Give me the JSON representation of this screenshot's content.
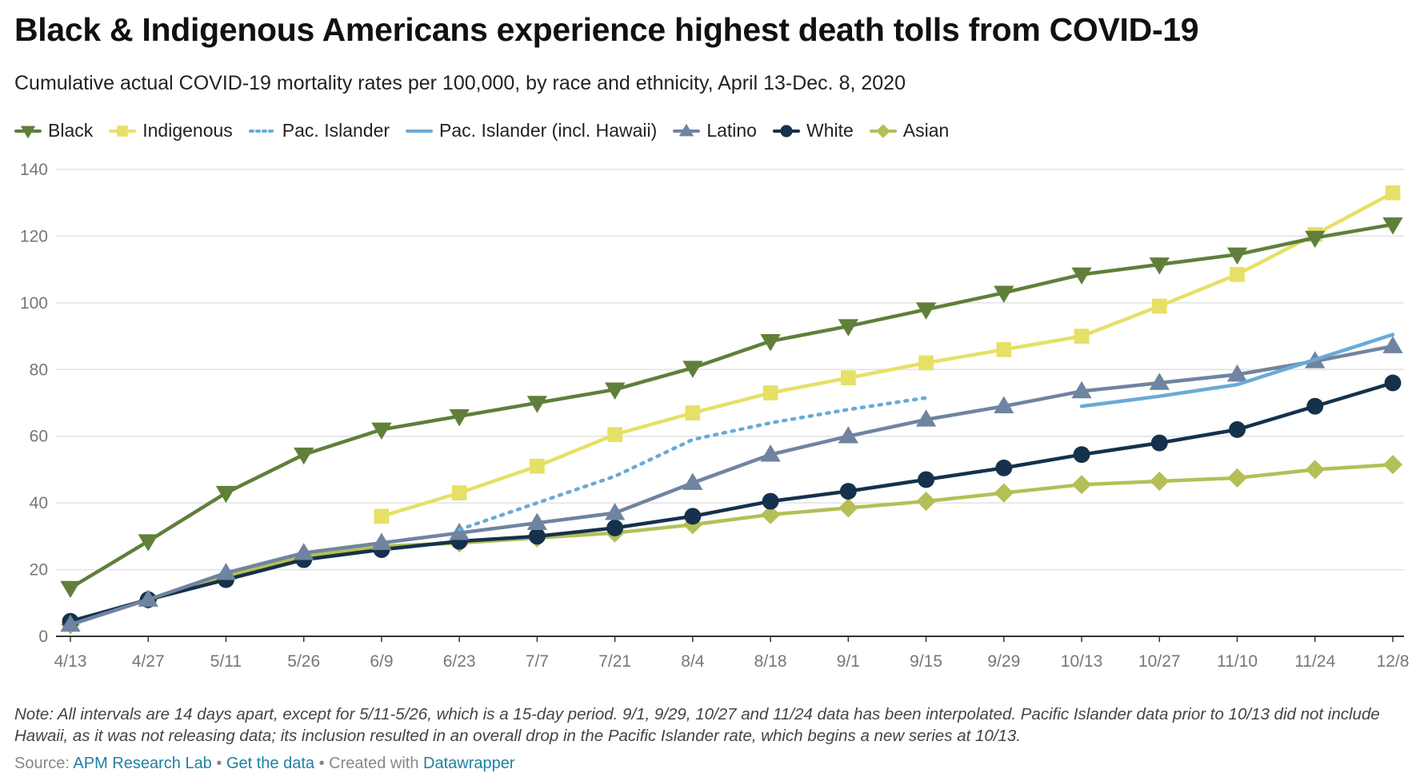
{
  "title": "Black & Indigenous Americans experience highest death tolls from COVID-19",
  "subtitle": "Cumulative actual COVID-19 mortality rates per 100,000, by race and ethnicity, April 13-Dec. 8, 2020",
  "note": "Note: All intervals are 14 days apart, except for 5/11-5/26, which is a 15-day period. 9/1, 9/29, 10/27 and 11/24 data has been interpolated. Pacific Islander data prior to 10/13 did not include Hawaii, as it was not releasing data; its inclusion resulted in an overall drop in the Pacific Islander rate, which begins a new series at 10/13.",
  "footer": {
    "source_label": "Source:",
    "source_link": "APM Research Lab",
    "sep1": "•",
    "data_link": "Get the data",
    "sep2": "•",
    "created_label": "Created with",
    "created_link": "Datawrapper"
  },
  "legend": [
    {
      "name": "Black",
      "color": "#5f7f3a",
      "marker": "triangle-down",
      "dash": false
    },
    {
      "name": "Indigenous",
      "color": "#e6e066",
      "marker": "square",
      "dash": false
    },
    {
      "name": "Pac. Islander",
      "color": "#6aaad6",
      "marker": "none",
      "dash": true
    },
    {
      "name": "Pac. Islander (incl. Hawaii)",
      "color": "#6aaad6",
      "marker": "none",
      "dash": false
    },
    {
      "name": "Latino",
      "color": "#6f84a0",
      "marker": "triangle-up",
      "dash": false
    },
    {
      "name": "White",
      "color": "#15314c",
      "marker": "circle",
      "dash": false
    },
    {
      "name": "Asian",
      "color": "#b4bf56",
      "marker": "diamond",
      "dash": false
    }
  ],
  "chart_data": {
    "type": "line",
    "title": "Black & Indigenous Americans experience highest death tolls from COVID-19",
    "subtitle": "Cumulative actual COVID-19 mortality rates per 100,000, by race and ethnicity, April 13-Dec. 8, 2020",
    "x": [
      "4/13",
      "4/27",
      "5/11",
      "5/26",
      "6/9",
      "6/23",
      "7/7",
      "7/21",
      "8/4",
      "8/18",
      "9/1",
      "9/15",
      "9/29",
      "10/13",
      "10/27",
      "11/10",
      "11/24",
      "12/8"
    ],
    "ylim": [
      0,
      140
    ],
    "yticks": [
      0,
      20,
      40,
      60,
      80,
      100,
      120,
      140
    ],
    "grid": true,
    "legend_position": "top-left",
    "series": [
      {
        "name": "Asian",
        "values": [
          3.5,
          11,
          18,
          24,
          27,
          28,
          29.5,
          31,
          33.5,
          36.5,
          38.5,
          40.5,
          43,
          45.5,
          46.5,
          47.5,
          50,
          51.5
        ]
      },
      {
        "name": "White",
        "values": [
          4.5,
          11,
          17,
          23,
          26,
          28.5,
          30,
          32.5,
          36,
          40.5,
          43.5,
          47,
          50.5,
          54.5,
          58,
          62,
          69,
          76
        ]
      },
      {
        "name": "Latino",
        "values": [
          3.5,
          11,
          19,
          25,
          28,
          31,
          34,
          37,
          46,
          54.5,
          60,
          65,
          69,
          73.5,
          76,
          78.5,
          82.5,
          87
        ]
      },
      {
        "name": "Pac. Islander",
        "values": [
          null,
          null,
          null,
          null,
          null,
          32,
          40,
          48,
          59,
          64,
          68,
          71.5,
          null,
          null,
          null,
          null,
          null,
          null
        ]
      },
      {
        "name": "Pac. Islander (incl. Hawaii)",
        "values": [
          null,
          null,
          null,
          null,
          null,
          null,
          null,
          null,
          null,
          null,
          null,
          null,
          null,
          69,
          72,
          75.5,
          83,
          90.5
        ]
      },
      {
        "name": "Indigenous",
        "values": [
          null,
          null,
          null,
          null,
          36,
          43,
          51,
          60.5,
          67,
          73,
          77.5,
          82,
          86,
          90,
          99,
          108.5,
          120.5,
          133
        ]
      },
      {
        "name": "Black",
        "values": [
          14.5,
          28.5,
          43,
          54.5,
          62,
          66,
          70,
          74,
          80.5,
          88.5,
          93,
          98,
          103,
          108.5,
          111.5,
          114.5,
          119.5,
          123.5
        ]
      }
    ]
  }
}
